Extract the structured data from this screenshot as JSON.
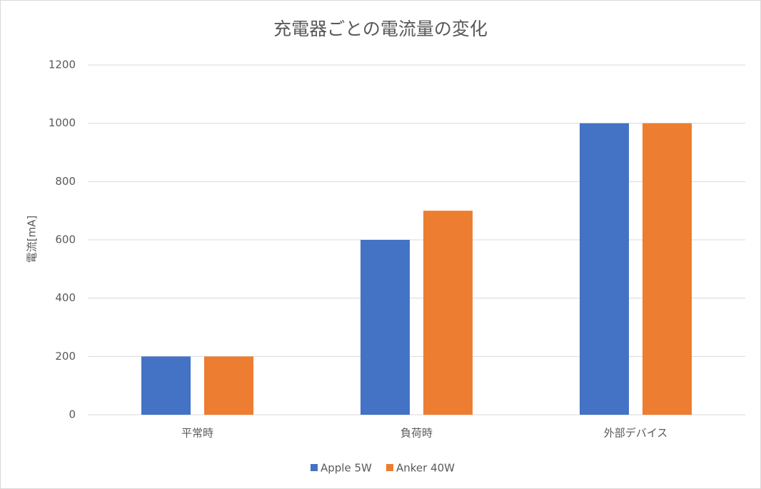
{
  "chart_data": {
    "type": "bar",
    "title": "充電器ごとの電流量の変化",
    "ylabel": "電流[mA]",
    "categories": [
      "平常時",
      "負荷時",
      "外部デバイス"
    ],
    "series": [
      {
        "name": "Apple 5W",
        "color": "#4472c4",
        "values": [
          200,
          600,
          1000
        ]
      },
      {
        "name": "Anker 40W",
        "color": "#ed7d31",
        "values": [
          200,
          700,
          1000
        ]
      }
    ],
    "ylim": [
      0,
      1200
    ],
    "yticks": [
      0,
      200,
      400,
      600,
      800,
      1000,
      1200
    ],
    "grid": true,
    "legend": "bottom"
  }
}
